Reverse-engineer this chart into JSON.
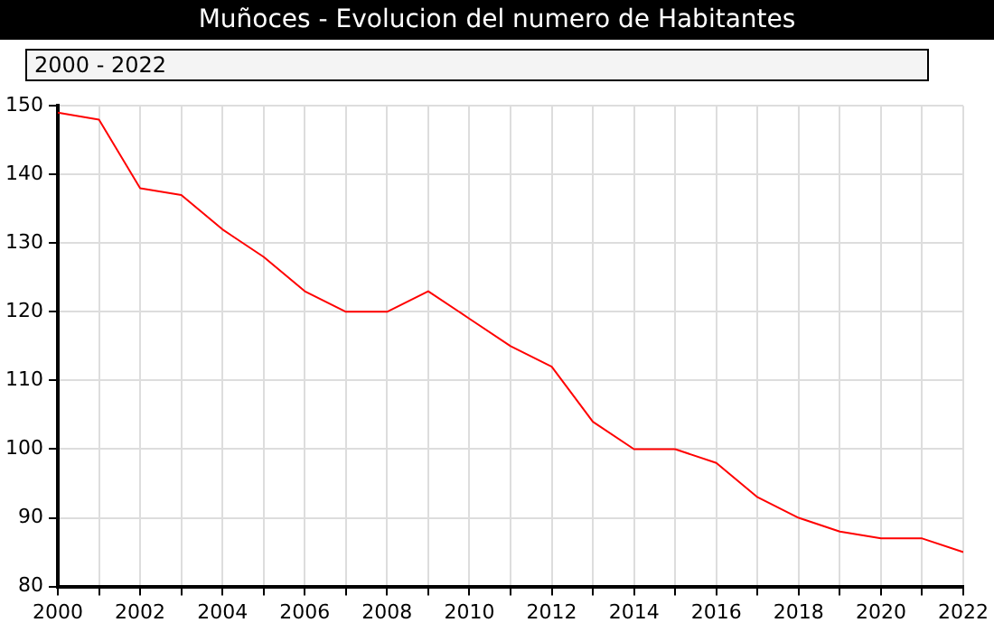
{
  "chart_data": {
    "type": "line",
    "title": "Muñoces - Evolucion del numero de Habitantes",
    "subtitle": "2000 - 2022",
    "x": [
      2000,
      2001,
      2002,
      2003,
      2004,
      2005,
      2006,
      2007,
      2008,
      2009,
      2010,
      2011,
      2012,
      2013,
      2014,
      2015,
      2016,
      2017,
      2018,
      2019,
      2020,
      2021,
      2022
    ],
    "series": [
      {
        "color": "#ff0000",
        "values": [
          149,
          148,
          138,
          137,
          132,
          128,
          123,
          120,
          120,
          123,
          119,
          115,
          112,
          104,
          100,
          100,
          98,
          93,
          90,
          88,
          87,
          87,
          85
        ]
      }
    ],
    "xlim": [
      2000,
      2022
    ],
    "xticks": [
      2000,
      {
        "value": 2001,
        "label": null
      },
      2002,
      {
        "value": 2003,
        "label": null
      },
      2004,
      {
        "value": 2005,
        "label": null
      },
      2006,
      {
        "value": 2007,
        "label": null
      },
      2008,
      {
        "value": 2009,
        "label": null
      },
      2010,
      {
        "value": 2011,
        "label": null
      },
      2012,
      {
        "value": 2013,
        "label": null
      },
      2014,
      {
        "value": 2015,
        "label": null
      },
      2016,
      {
        "value": 2017,
        "label": null
      },
      2018,
      {
        "value": 2019,
        "label": null
      },
      2020,
      {
        "value": 2021,
        "label": null
      },
      2022
    ],
    "ylim": [
      80,
      150
    ],
    "yticks": [
      80,
      90,
      100,
      110,
      120,
      130,
      140,
      150
    ],
    "grid": true,
    "legend": false,
    "marker": "none",
    "line_style": "solid"
  }
}
